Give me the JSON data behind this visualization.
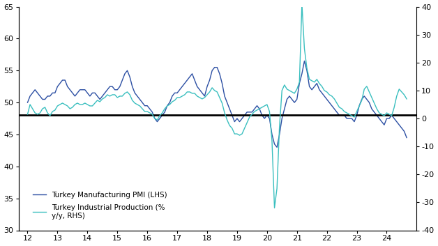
{
  "background_color": "#ffffff",
  "pmi_color": "#2c4fa3",
  "ip_color": "#3abfbf",
  "hline_color": "#000000",
  "hline_y": 48.0,
  "lhs_ylim": [
    30,
    65
  ],
  "rhs_ylim": [
    -40,
    40
  ],
  "lhs_yticks": [
    30,
    35,
    40,
    45,
    50,
    55,
    60,
    65
  ],
  "rhs_yticks": [
    -40,
    -30,
    -20,
    -10,
    0,
    10,
    20,
    30,
    40
  ],
  "xticks": [
    12,
    13,
    14,
    15,
    16,
    17,
    18,
    19,
    20,
    21,
    22,
    23,
    24
  ],
  "xlim": [
    11.7,
    25.0
  ],
  "legend_pmi": "Turkey Manufacturing PMI (LHS)",
  "legend_ip": "Turkey Industrial Production (%\ny/y, RHS)",
  "line_width": 1.0,
  "pmi_monthly": [
    50.0,
    51.0,
    51.5,
    52.0,
    51.5,
    51.0,
    50.5,
    50.5,
    51.0,
    51.0,
    51.5,
    51.5,
    52.5,
    53.0,
    53.5,
    53.5,
    52.5,
    52.0,
    51.5,
    51.0,
    51.5,
    52.0,
    52.0,
    52.0,
    51.5,
    51.0,
    51.5,
    51.5,
    51.0,
    50.5,
    51.0,
    51.5,
    52.0,
    52.5,
    52.5,
    52.0,
    52.0,
    52.5,
    53.5,
    54.5,
    55.0,
    54.0,
    52.5,
    51.5,
    51.0,
    50.5,
    50.0,
    49.5,
    49.5,
    49.0,
    48.5,
    47.5,
    47.0,
    47.5,
    48.0,
    48.5,
    49.5,
    50.0,
    51.0,
    51.5,
    51.5,
    52.0,
    52.5,
    53.0,
    53.5,
    54.0,
    54.5,
    53.5,
    52.5,
    52.0,
    51.5,
    51.0,
    52.5,
    53.5,
    55.0,
    55.5,
    55.5,
    54.5,
    53.0,
    51.0,
    50.0,
    49.0,
    48.0,
    47.0,
    47.5,
    47.0,
    47.5,
    48.0,
    48.5,
    48.5,
    48.5,
    49.0,
    49.5,
    49.0,
    48.0,
    47.5,
    48.0,
    47.5,
    45.0,
    43.5,
    43.0,
    45.0,
    47.5,
    49.0,
    50.5,
    51.0,
    50.5,
    50.0,
    50.5,
    53.0,
    54.5,
    56.5,
    55.0,
    52.5,
    52.0,
    52.5,
    53.0,
    52.0,
    51.5,
    51.0,
    50.5,
    50.0,
    49.5,
    49.0,
    48.5,
    48.0,
    48.0,
    48.0,
    47.5,
    47.5,
    47.5,
    47.0,
    48.0,
    49.5,
    50.5,
    51.0,
    50.5,
    50.0,
    49.0,
    48.5,
    48.0,
    47.5,
    47.0,
    46.5,
    47.5,
    47.5,
    48.0,
    47.5,
    47.0,
    46.5,
    46.0,
    45.5,
    44.5
  ],
  "ip_monthly": [
    1.5,
    5.0,
    3.5,
    2.0,
    1.5,
    2.0,
    3.5,
    4.0,
    2.0,
    1.0,
    2.5,
    3.0,
    4.5,
    5.0,
    5.5,
    5.0,
    4.5,
    3.5,
    4.0,
    5.0,
    5.5,
    5.0,
    5.0,
    5.5,
    5.0,
    4.5,
    4.5,
    5.5,
    6.5,
    6.0,
    7.0,
    7.5,
    8.5,
    8.0,
    8.5,
    8.5,
    7.5,
    8.0,
    8.0,
    9.0,
    9.5,
    8.5,
    6.5,
    5.5,
    5.0,
    4.5,
    3.5,
    2.5,
    2.5,
    2.0,
    1.5,
    0.0,
    -0.5,
    1.0,
    2.0,
    3.5,
    4.5,
    5.0,
    6.0,
    6.5,
    7.5,
    7.5,
    8.0,
    8.5,
    9.5,
    9.5,
    9.0,
    9.0,
    8.0,
    7.5,
    7.0,
    7.5,
    8.5,
    9.5,
    11.0,
    10.0,
    9.5,
    7.5,
    5.5,
    2.0,
    -0.5,
    -2.5,
    -3.5,
    -5.5,
    -5.5,
    -6.0,
    -5.5,
    -3.5,
    -1.5,
    0.5,
    1.5,
    2.5,
    3.0,
    3.5,
    4.0,
    4.5,
    5.0,
    2.5,
    -8.0,
    -32.0,
    -25.0,
    -3.0,
    10.0,
    12.0,
    10.5,
    10.0,
    9.5,
    9.0,
    10.5,
    13.0,
    41.0,
    25.0,
    18.0,
    14.0,
    13.5,
    13.0,
    14.0,
    12.5,
    11.5,
    10.0,
    9.5,
    8.5,
    8.0,
    7.0,
    5.5,
    4.0,
    3.5,
    2.5,
    2.0,
    1.5,
    1.0,
    0.5,
    2.5,
    4.5,
    6.5,
    10.5,
    11.5,
    9.5,
    7.5,
    5.5,
    3.5,
    2.0,
    1.5,
    1.0,
    2.0,
    1.5,
    1.0,
    4.0,
    8.0,
    10.5,
    9.5,
    8.5,
    7.0
  ],
  "start_year": 12,
  "start_month": 1
}
